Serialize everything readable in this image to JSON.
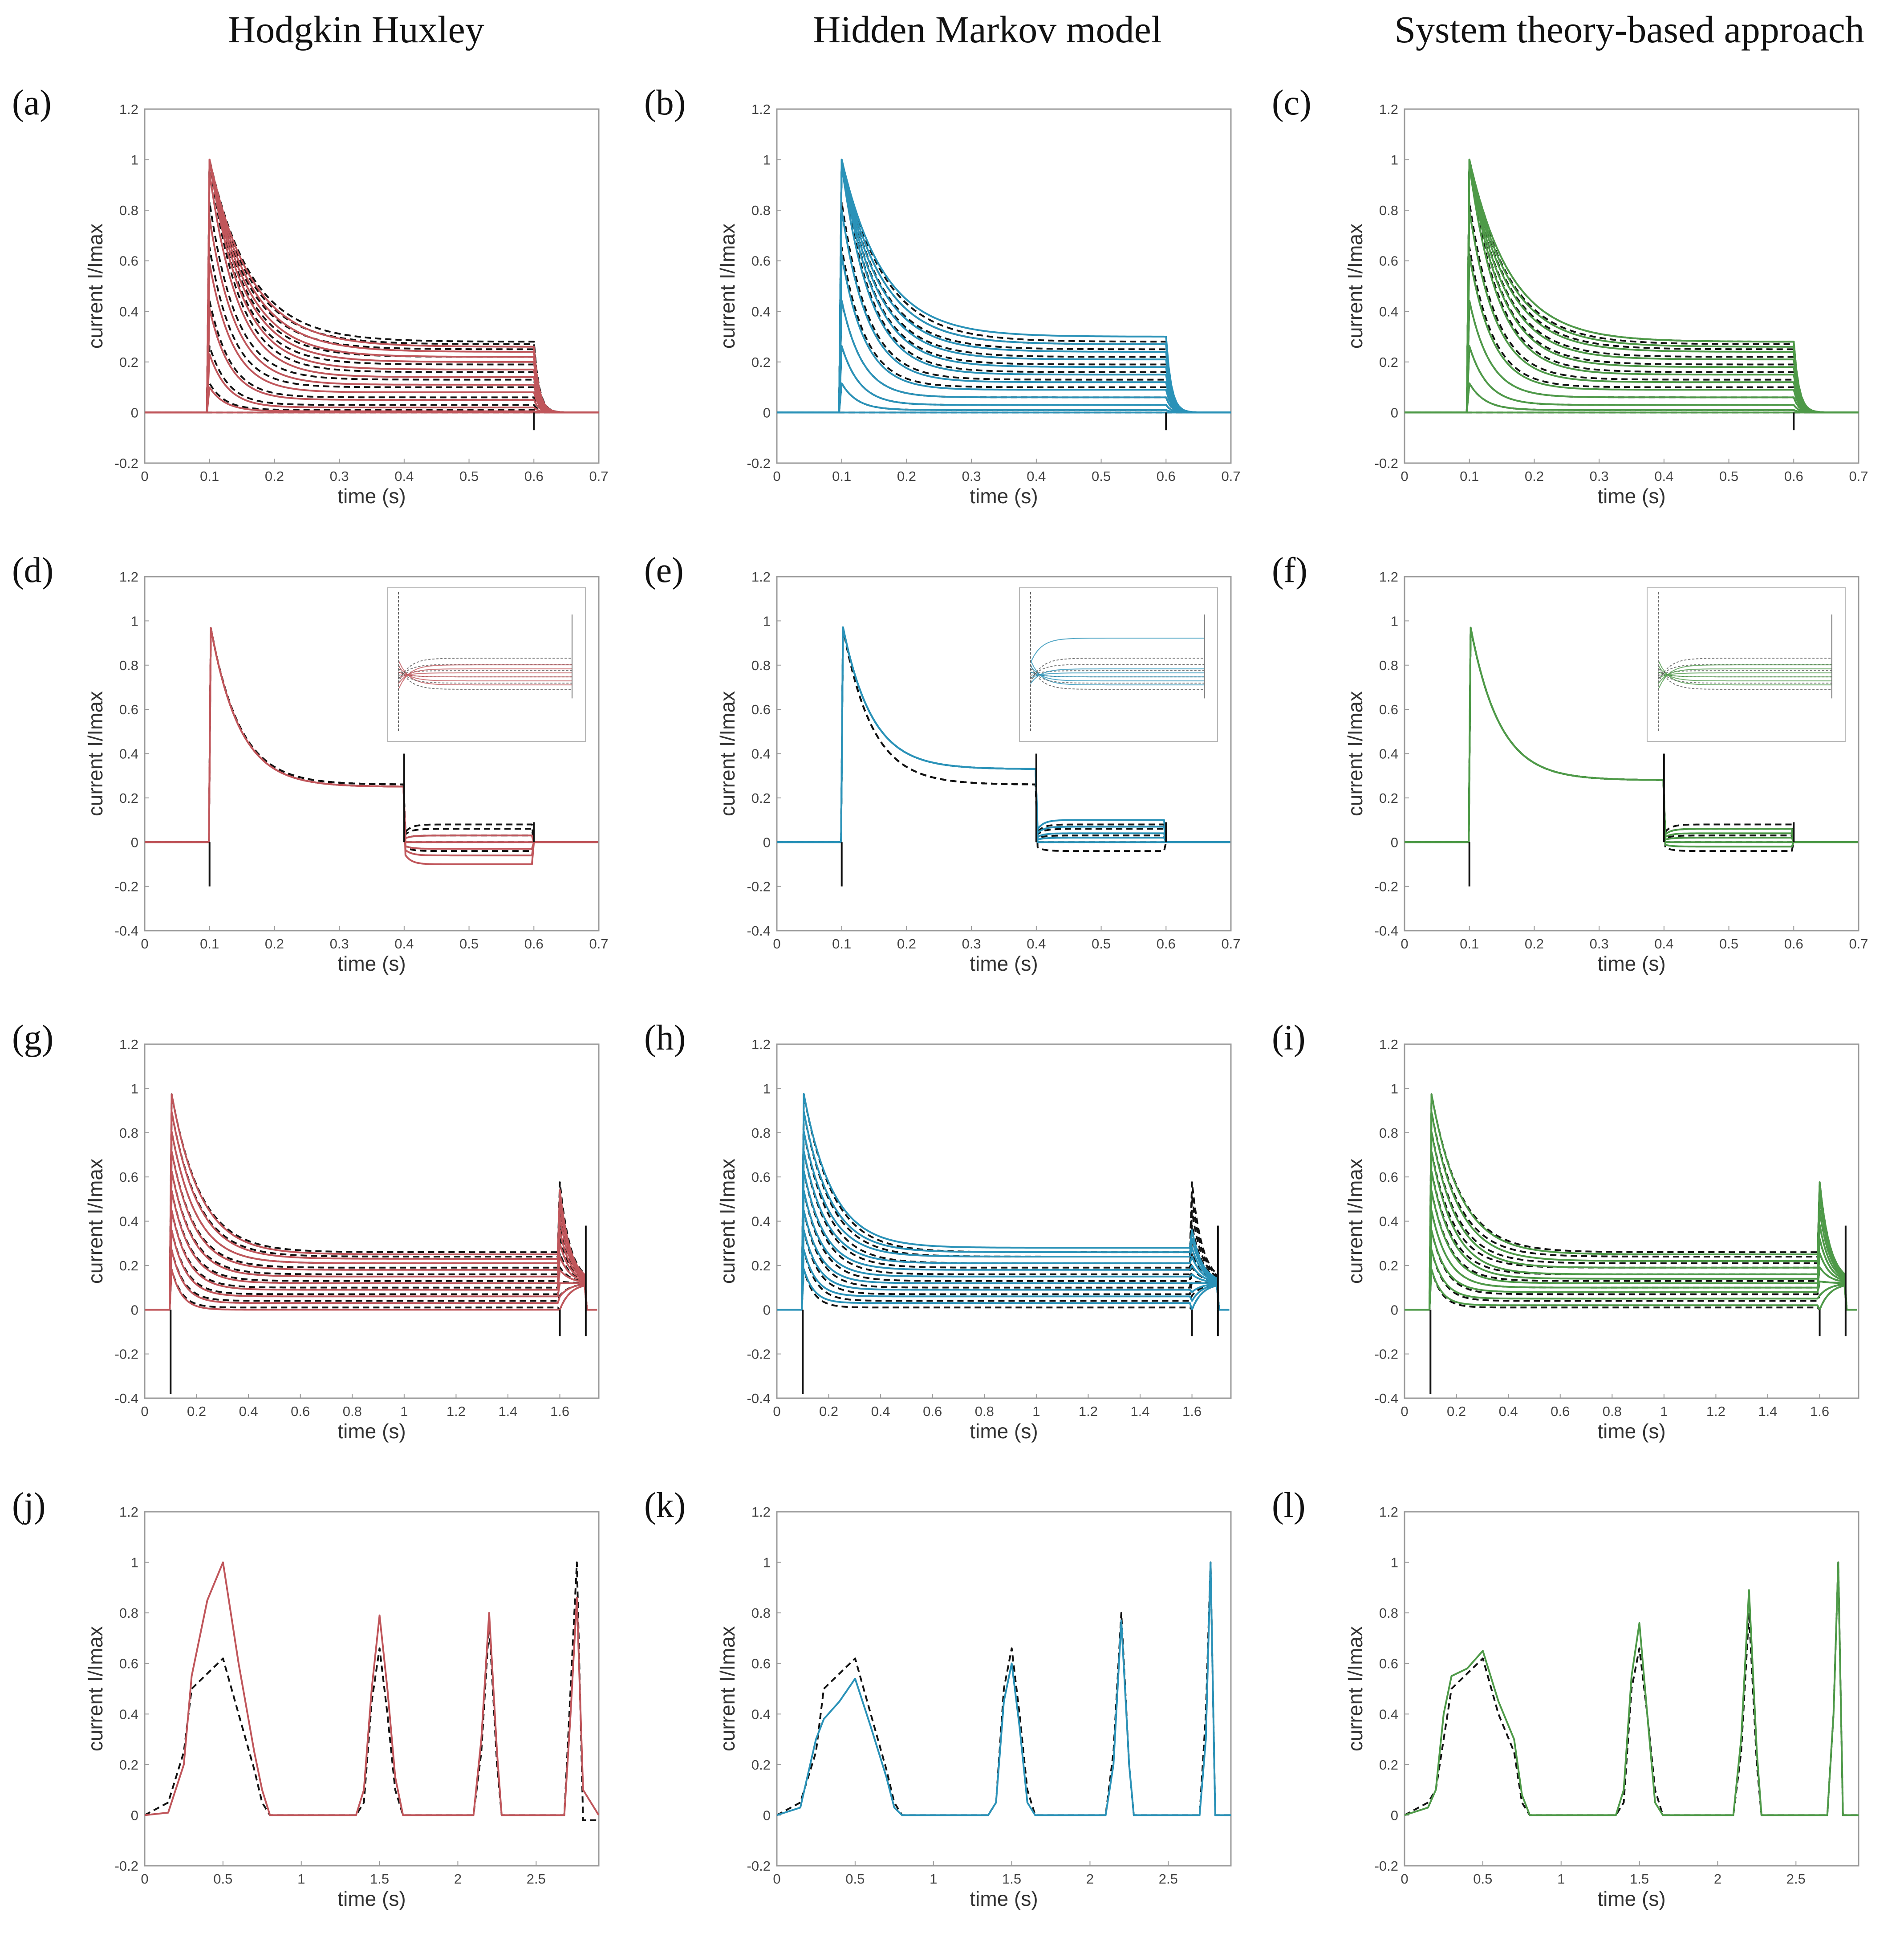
{
  "column_titles": [
    "Hodgkin Huxley",
    "Hidden Markov model",
    "System theory-based approach"
  ],
  "colors": {
    "hh": "#c0565b",
    "hmm": "#2a92b8",
    "st": "#4e9a48",
    "experimental": "#111111"
  },
  "legend_semantics": {
    "experimental": "black dashed",
    "model": "colored solid"
  },
  "chart_data": [
    {
      "panel": "(a)",
      "model": "hh",
      "protocol": "activation",
      "type": "line",
      "xlabel": "time (s)",
      "ylabel": "current I/Imax",
      "xlim": [
        0,
        0.7
      ],
      "ylim": [
        -0.2,
        1.2
      ],
      "xticks": [
        "0",
        "0.1",
        "0.2",
        "0.3",
        "0.4",
        "0.5",
        "0.6",
        "0.7"
      ],
      "yticks": [
        "-0.2",
        "0",
        "0.2",
        "0.4",
        "0.6",
        "0.8",
        "1",
        "1.2"
      ],
      "series": [
        {
          "name": "model",
          "style": "solid",
          "plateaus": [
            0.0,
            0.005,
            0.02,
            0.05,
            0.08,
            0.11,
            0.14,
            0.17,
            0.2,
            0.22,
            0.24,
            0.26
          ],
          "peak": 1.0
        },
        {
          "name": "experimental",
          "style": "dashed",
          "plateaus": [
            0.0,
            0.01,
            0.03,
            0.06,
            0.1,
            0.13,
            0.16,
            0.19,
            0.22,
            0.25,
            0.27,
            0.28
          ],
          "peak": 1.0
        }
      ]
    },
    {
      "panel": "(b)",
      "model": "hmm",
      "protocol": "activation",
      "type": "line",
      "xlabel": "time (s)",
      "ylabel": "current I/Imax",
      "xlim": [
        0,
        0.7
      ],
      "ylim": [
        -0.2,
        1.2
      ],
      "xticks": [
        "0",
        "0.1",
        "0.2",
        "0.3",
        "0.4",
        "0.5",
        "0.6",
        "0.7"
      ],
      "yticks": [
        "-0.2",
        "0",
        "0.2",
        "0.4",
        "0.6",
        "0.8",
        "1",
        "1.2"
      ],
      "series": [
        {
          "name": "model",
          "style": "solid",
          "plateaus": [
            0.0,
            0.01,
            0.03,
            0.06,
            0.09,
            0.12,
            0.15,
            0.18,
            0.21,
            0.24,
            0.27,
            0.3
          ],
          "peak": 1.0
        },
        {
          "name": "experimental",
          "style": "dashed",
          "plateaus": [
            0.0,
            0.01,
            0.03,
            0.06,
            0.1,
            0.13,
            0.16,
            0.19,
            0.22,
            0.25,
            0.27,
            0.28
          ],
          "peak": 1.0
        }
      ]
    },
    {
      "panel": "(c)",
      "model": "st",
      "protocol": "activation",
      "type": "line",
      "xlabel": "time (s)",
      "ylabel": "current I/Imax",
      "xlim": [
        0,
        0.7
      ],
      "ylim": [
        -0.2,
        1.2
      ],
      "xticks": [
        "0",
        "0.1",
        "0.2",
        "0.3",
        "0.4",
        "0.5",
        "0.6",
        "0.7"
      ],
      "yticks": [
        "-0.2",
        "0",
        "0.2",
        "0.4",
        "0.6",
        "0.8",
        "1",
        "1.2"
      ],
      "series": [
        {
          "name": "model",
          "style": "solid",
          "plateaus": [
            0.0,
            0.01,
            0.03,
            0.06,
            0.09,
            0.12,
            0.15,
            0.18,
            0.21,
            0.24,
            0.26,
            0.28
          ],
          "peak": 1.0
        },
        {
          "name": "experimental",
          "style": "dashed",
          "plateaus": [
            0.0,
            0.01,
            0.03,
            0.06,
            0.1,
            0.13,
            0.16,
            0.19,
            0.22,
            0.25,
            0.27,
            0.28
          ],
          "peak": 1.0
        }
      ]
    },
    {
      "panel": "(d)",
      "model": "hh",
      "protocol": "deactivation",
      "type": "line",
      "xlabel": "time (s)",
      "ylabel": "current I/Imax",
      "xlim": [
        0,
        0.7
      ],
      "ylim": [
        -0.4,
        1.2
      ],
      "xticks": [
        "0",
        "0.1",
        "0.2",
        "0.3",
        "0.4",
        "0.5",
        "0.6",
        "0.7"
      ],
      "yticks": [
        "-0.4",
        "-0.2",
        "0",
        "0.2",
        "0.4",
        "0.6",
        "0.8",
        "1",
        "1.2"
      ],
      "series": [
        {
          "name": "model",
          "style": "solid",
          "plateau": 0.25,
          "tails": [
            -0.05,
            -0.03,
            -0.015,
            0.0,
            0.015
          ]
        },
        {
          "name": "experimental",
          "style": "dashed",
          "plateau": 0.26,
          "tails": [
            -0.02,
            0.0,
            0.015,
            0.03,
            0.04
          ]
        }
      ],
      "inset": true
    },
    {
      "panel": "(e)",
      "model": "hmm",
      "protocol": "deactivation",
      "type": "line",
      "xlabel": "time (s)",
      "ylabel": "current I/Imax",
      "xlim": [
        0,
        0.7
      ],
      "ylim": [
        -0.4,
        1.2
      ],
      "xticks": [
        "0",
        "0.1",
        "0.2",
        "0.3",
        "0.4",
        "0.5",
        "0.6",
        "0.7"
      ],
      "yticks": [
        "-0.4",
        "-0.2",
        "0",
        "0.2",
        "0.4",
        "0.6",
        "0.8",
        "1",
        "1.2"
      ],
      "series": [
        {
          "name": "model",
          "style": "solid",
          "plateau": 0.33,
          "tails": [
            0.0,
            0.01,
            0.02,
            0.035,
            0.05
          ]
        },
        {
          "name": "experimental",
          "style": "dashed",
          "plateau": 0.26,
          "tails": [
            -0.02,
            0.0,
            0.015,
            0.03,
            0.04
          ]
        }
      ],
      "inset": true
    },
    {
      "panel": "(f)",
      "model": "st",
      "protocol": "deactivation",
      "type": "line",
      "xlabel": "time (s)",
      "ylabel": "current I/Imax",
      "xlim": [
        0,
        0.7
      ],
      "ylim": [
        -0.4,
        1.2
      ],
      "xticks": [
        "0",
        "0.1",
        "0.2",
        "0.3",
        "0.4",
        "0.5",
        "0.6",
        "0.7"
      ],
      "yticks": [
        "-0.4",
        "-0.2",
        "0",
        "0.2",
        "0.4",
        "0.6",
        "0.8",
        "1",
        "1.2"
      ],
      "series": [
        {
          "name": "model",
          "style": "solid",
          "plateau": 0.28,
          "tails": [
            -0.01,
            0.0,
            0.01,
            0.02,
            0.03
          ]
        },
        {
          "name": "experimental",
          "style": "dashed",
          "plateau": 0.28,
          "tails": [
            -0.02,
            0.0,
            0.015,
            0.03,
            0.04
          ]
        }
      ],
      "inset": true
    },
    {
      "panel": "(g)",
      "model": "hh",
      "protocol": "inactivation",
      "type": "line",
      "xlabel": "time (s)",
      "ylabel": "current I/Imax",
      "xlim": [
        0,
        1.75
      ],
      "ylim": [
        -0.4,
        1.2
      ],
      "xticks": [
        "0",
        "0.2",
        "0.4",
        "0.6",
        "0.8",
        "1",
        "1.2",
        "1.4",
        "1.6"
      ],
      "yticks": [
        "-0.4",
        "-0.2",
        "0",
        "0.2",
        "0.4",
        "0.6",
        "0.8",
        "1",
        "1.2"
      ],
      "series": [
        {
          "name": "model",
          "style": "solid",
          "plateaus": [
            0.0,
            0.03,
            0.06,
            0.09,
            0.12,
            0.15,
            0.18,
            0.21,
            0.23,
            0.25
          ],
          "peak": 1.0,
          "tailpeak": 0.6
        },
        {
          "name": "experimental",
          "style": "dashed",
          "plateaus": [
            0.01,
            0.04,
            0.07,
            0.1,
            0.13,
            0.16,
            0.19,
            0.21,
            0.24,
            0.26
          ],
          "peak": 1.0,
          "tailpeak": 0.64
        }
      ]
    },
    {
      "panel": "(h)",
      "model": "hmm",
      "protocol": "inactivation",
      "type": "line",
      "xlabel": "time (s)",
      "ylabel": "current I/Imax",
      "xlim": [
        0,
        1.75
      ],
      "ylim": [
        -0.4,
        1.2
      ],
      "xticks": [
        "0",
        "0.2",
        "0.4",
        "0.6",
        "0.8",
        "1",
        "1.2",
        "1.4",
        "1.6"
      ],
      "yticks": [
        "-0.4",
        "-0.2",
        "0",
        "0.2",
        "0.4",
        "0.6",
        "0.8",
        "1",
        "1.2"
      ],
      "series": [
        {
          "name": "model",
          "style": "solid",
          "plateaus": [
            0.03,
            0.06,
            0.09,
            0.12,
            0.15,
            0.18,
            0.21,
            0.24,
            0.26,
            0.28
          ],
          "peak": 1.0,
          "tailpeak": 0.4
        },
        {
          "name": "experimental",
          "style": "dashed",
          "plateaus": [
            0.01,
            0.04,
            0.07,
            0.1,
            0.13,
            0.16,
            0.19,
            0.21,
            0.24,
            0.26
          ],
          "peak": 1.0,
          "tailpeak": 0.64
        }
      ]
    },
    {
      "panel": "(i)",
      "model": "st",
      "protocol": "inactivation",
      "type": "line",
      "xlabel": "time (s)",
      "ylabel": "current I/Imax",
      "xlim": [
        0,
        1.75
      ],
      "ylim": [
        -0.4,
        1.2
      ],
      "xticks": [
        "0",
        "0.2",
        "0.4",
        "0.6",
        "0.8",
        "1",
        "1.2",
        "1.4",
        "1.6"
      ],
      "yticks": [
        "-0.4",
        "-0.2",
        "0",
        "0.2",
        "0.4",
        "0.6",
        "0.8",
        "1",
        "1.2"
      ],
      "series": [
        {
          "name": "model",
          "style": "solid",
          "plateaus": [
            0.02,
            0.05,
            0.08,
            0.1,
            0.12,
            0.14,
            0.16,
            0.19,
            0.22,
            0.25
          ],
          "peak": 1.0,
          "tailpeak": 0.64
        },
        {
          "name": "experimental",
          "style": "dashed",
          "plateaus": [
            0.01,
            0.04,
            0.07,
            0.1,
            0.13,
            0.16,
            0.19,
            0.21,
            0.24,
            0.26
          ],
          "peak": 1.0,
          "tailpeak": 0.64
        }
      ]
    },
    {
      "panel": "(j)",
      "model": "hh",
      "protocol": "action potential",
      "type": "line",
      "xlabel": "time (s)",
      "ylabel": "current I/Imax",
      "xlim": [
        0,
        2.9
      ],
      "ylim": [
        -0.2,
        1.2
      ],
      "xticks": [
        "0",
        "0.5",
        "1",
        "1.5",
        "2",
        "2.5"
      ],
      "yticks": [
        "-0.2",
        "0",
        "0.2",
        "0.4",
        "0.6",
        "0.8",
        "1",
        "1.2"
      ],
      "series": [
        {
          "name": "model",
          "style": "solid",
          "x": [
            0,
            0.15,
            0.25,
            0.3,
            0.4,
            0.5,
            0.6,
            0.7,
            0.75,
            0.8,
            1.35,
            1.4,
            1.45,
            1.5,
            1.55,
            1.6,
            1.65,
            2.1,
            2.15,
            2.2,
            2.25,
            2.28,
            2.68,
            2.72,
            2.76,
            2.8,
            2.9
          ],
          "y": [
            0,
            0.01,
            0.2,
            0.55,
            0.85,
            1.0,
            0.6,
            0.25,
            0.1,
            0,
            0,
            0.1,
            0.5,
            0.79,
            0.5,
            0.15,
            0,
            0,
            0.3,
            0.8,
            0.25,
            0,
            0,
            0.4,
            0.86,
            0.1,
            0
          ]
        },
        {
          "name": "experimental",
          "style": "dashed",
          "x": [
            0,
            0.15,
            0.25,
            0.3,
            0.4,
            0.5,
            0.6,
            0.7,
            0.75,
            0.8,
            1.35,
            1.4,
            1.45,
            1.5,
            1.55,
            1.6,
            1.65,
            2.1,
            2.15,
            2.2,
            2.25,
            2.28,
            2.68,
            2.72,
            2.76,
            2.8,
            2.9
          ],
          "y": [
            0,
            0.05,
            0.25,
            0.5,
            0.56,
            0.62,
            0.4,
            0.18,
            0.05,
            0,
            0,
            0.05,
            0.45,
            0.66,
            0.4,
            0.1,
            0,
            0,
            0.25,
            0.76,
            0.2,
            0,
            0,
            0.5,
            1.0,
            -0.02,
            -0.02
          ]
        }
      ]
    },
    {
      "panel": "(k)",
      "model": "hmm",
      "protocol": "action potential",
      "type": "line",
      "xlabel": "time (s)",
      "ylabel": "current I/Imax",
      "xlim": [
        0,
        2.9
      ],
      "ylim": [
        -0.2,
        1.2
      ],
      "xticks": [
        "0",
        "0.5",
        "1",
        "1.5",
        "2",
        "2.5"
      ],
      "yticks": [
        "-0.2",
        "0",
        "0.2",
        "0.4",
        "0.6",
        "0.8",
        "1",
        "1.2"
      ],
      "series": [
        {
          "name": "model",
          "style": "solid",
          "x": [
            0,
            0.15,
            0.25,
            0.3,
            0.4,
            0.5,
            0.6,
            0.7,
            0.75,
            0.8,
            1.35,
            1.4,
            1.45,
            1.5,
            1.55,
            1.6,
            1.65,
            2.1,
            2.15,
            2.2,
            2.25,
            2.28,
            2.7,
            2.74,
            2.77,
            2.8,
            2.9
          ],
          "y": [
            0,
            0.03,
            0.3,
            0.38,
            0.45,
            0.54,
            0.35,
            0.15,
            0.03,
            0,
            0,
            0.05,
            0.45,
            0.6,
            0.35,
            0.05,
            0,
            0,
            0.2,
            0.77,
            0.2,
            0,
            0,
            0.3,
            1.0,
            0,
            0
          ]
        },
        {
          "name": "experimental",
          "style": "dashed",
          "x": [
            0,
            0.15,
            0.25,
            0.3,
            0.4,
            0.5,
            0.6,
            0.7,
            0.75,
            0.8,
            1.35,
            1.4,
            1.45,
            1.5,
            1.55,
            1.6,
            1.65,
            2.1,
            2.15,
            2.2,
            2.25,
            2.28,
            2.7,
            2.74,
            2.77,
            2.8,
            2.9
          ],
          "y": [
            0,
            0.05,
            0.25,
            0.5,
            0.56,
            0.62,
            0.4,
            0.18,
            0.05,
            0,
            0,
            0.05,
            0.5,
            0.66,
            0.4,
            0.1,
            0,
            0,
            0.25,
            0.8,
            0.2,
            0,
            0,
            0.4,
            1.0,
            0,
            0
          ]
        }
      ]
    },
    {
      "panel": "(l)",
      "model": "st",
      "protocol": "action potential",
      "type": "line",
      "xlabel": "time (s)",
      "ylabel": "current I/Imax",
      "xlim": [
        0,
        2.9
      ],
      "ylim": [
        -0.2,
        1.2
      ],
      "xticks": [
        "0",
        "0.5",
        "1",
        "1.5",
        "2",
        "2.5"
      ],
      "yticks": [
        "-0.2",
        "0",
        "0.2",
        "0.4",
        "0.6",
        "0.8",
        "1",
        "1.2"
      ],
      "series": [
        {
          "name": "model",
          "style": "solid",
          "x": [
            0,
            0.15,
            0.2,
            0.25,
            0.3,
            0.4,
            0.5,
            0.6,
            0.7,
            0.75,
            0.8,
            1.35,
            1.4,
            1.45,
            1.5,
            1.55,
            1.6,
            1.65,
            2.1,
            2.15,
            2.2,
            2.25,
            2.28,
            2.7,
            2.74,
            2.77,
            2.8,
            2.9
          ],
          "y": [
            0,
            0.03,
            0.1,
            0.4,
            0.55,
            0.58,
            0.65,
            0.45,
            0.3,
            0.08,
            0,
            0,
            0.1,
            0.55,
            0.76,
            0.4,
            0.05,
            0,
            0,
            0.3,
            0.89,
            0.25,
            0,
            0,
            0.4,
            1.0,
            0,
            0
          ]
        },
        {
          "name": "experimental",
          "style": "dashed",
          "x": [
            0,
            0.15,
            0.2,
            0.25,
            0.3,
            0.4,
            0.5,
            0.6,
            0.7,
            0.75,
            0.8,
            1.35,
            1.4,
            1.45,
            1.5,
            1.55,
            1.6,
            1.65,
            2.1,
            2.15,
            2.2,
            2.25,
            2.28,
            2.7,
            2.74,
            2.77,
            2.8,
            2.9
          ],
          "y": [
            0,
            0.05,
            0.1,
            0.3,
            0.5,
            0.56,
            0.62,
            0.4,
            0.25,
            0.05,
            0,
            0,
            0.05,
            0.5,
            0.66,
            0.4,
            0.1,
            0,
            0,
            0.25,
            0.8,
            0.2,
            0,
            0,
            0.4,
            1.0,
            0,
            0
          ]
        }
      ]
    }
  ]
}
